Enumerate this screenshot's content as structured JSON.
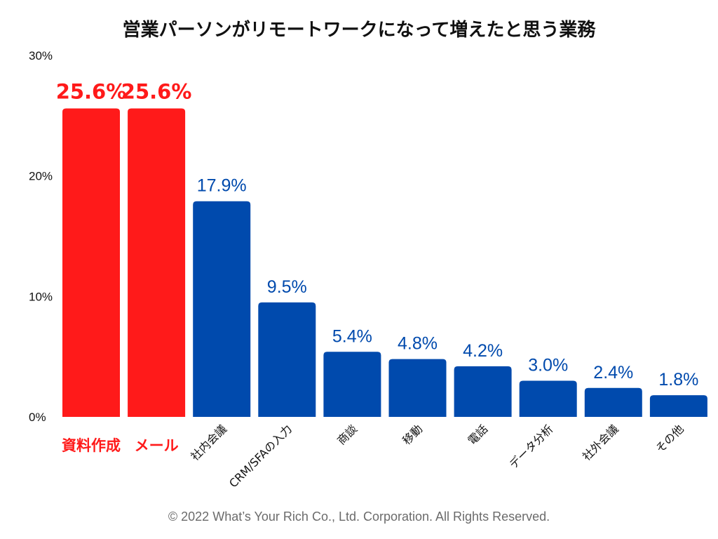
{
  "chart_data": {
    "type": "bar",
    "title": "営業パーソンがリモートワークになって増えたと思う業務",
    "categories": [
      "資料作成",
      "メール",
      "社内会議",
      "CRM/SFAの入力",
      "商談",
      "移動",
      "電話",
      "データ分析",
      "社外会議",
      "その他"
    ],
    "values": [
      25.6,
      25.6,
      17.9,
      9.5,
      5.4,
      4.8,
      4.2,
      3.0,
      2.4,
      1.8
    ],
    "value_labels": [
      "25.6%",
      "25.6%",
      "17.9%",
      "9.5%",
      "5.4%",
      "4.8%",
      "4.2%",
      "3.0%",
      "2.4%",
      "1.8%"
    ],
    "highlight": [
      true,
      true,
      false,
      false,
      false,
      false,
      false,
      false,
      false,
      false
    ],
    "ylim": [
      0,
      30
    ],
    "yticks": [
      0,
      10,
      20,
      30
    ],
    "ytick_labels": [
      "0%",
      "10%",
      "20%",
      "30%"
    ],
    "xlabel": "",
    "ylabel": "",
    "grid": false
  },
  "colors": {
    "highlight": "#ff1a1a",
    "bar": "#004aad",
    "highlight_text": "#ff1a1a",
    "bar_text": "#004aad"
  },
  "footer": {
    "copyright": "© 2022 What’s Your Rich Co., Ltd. Corporation. All Rights Reserved."
  }
}
